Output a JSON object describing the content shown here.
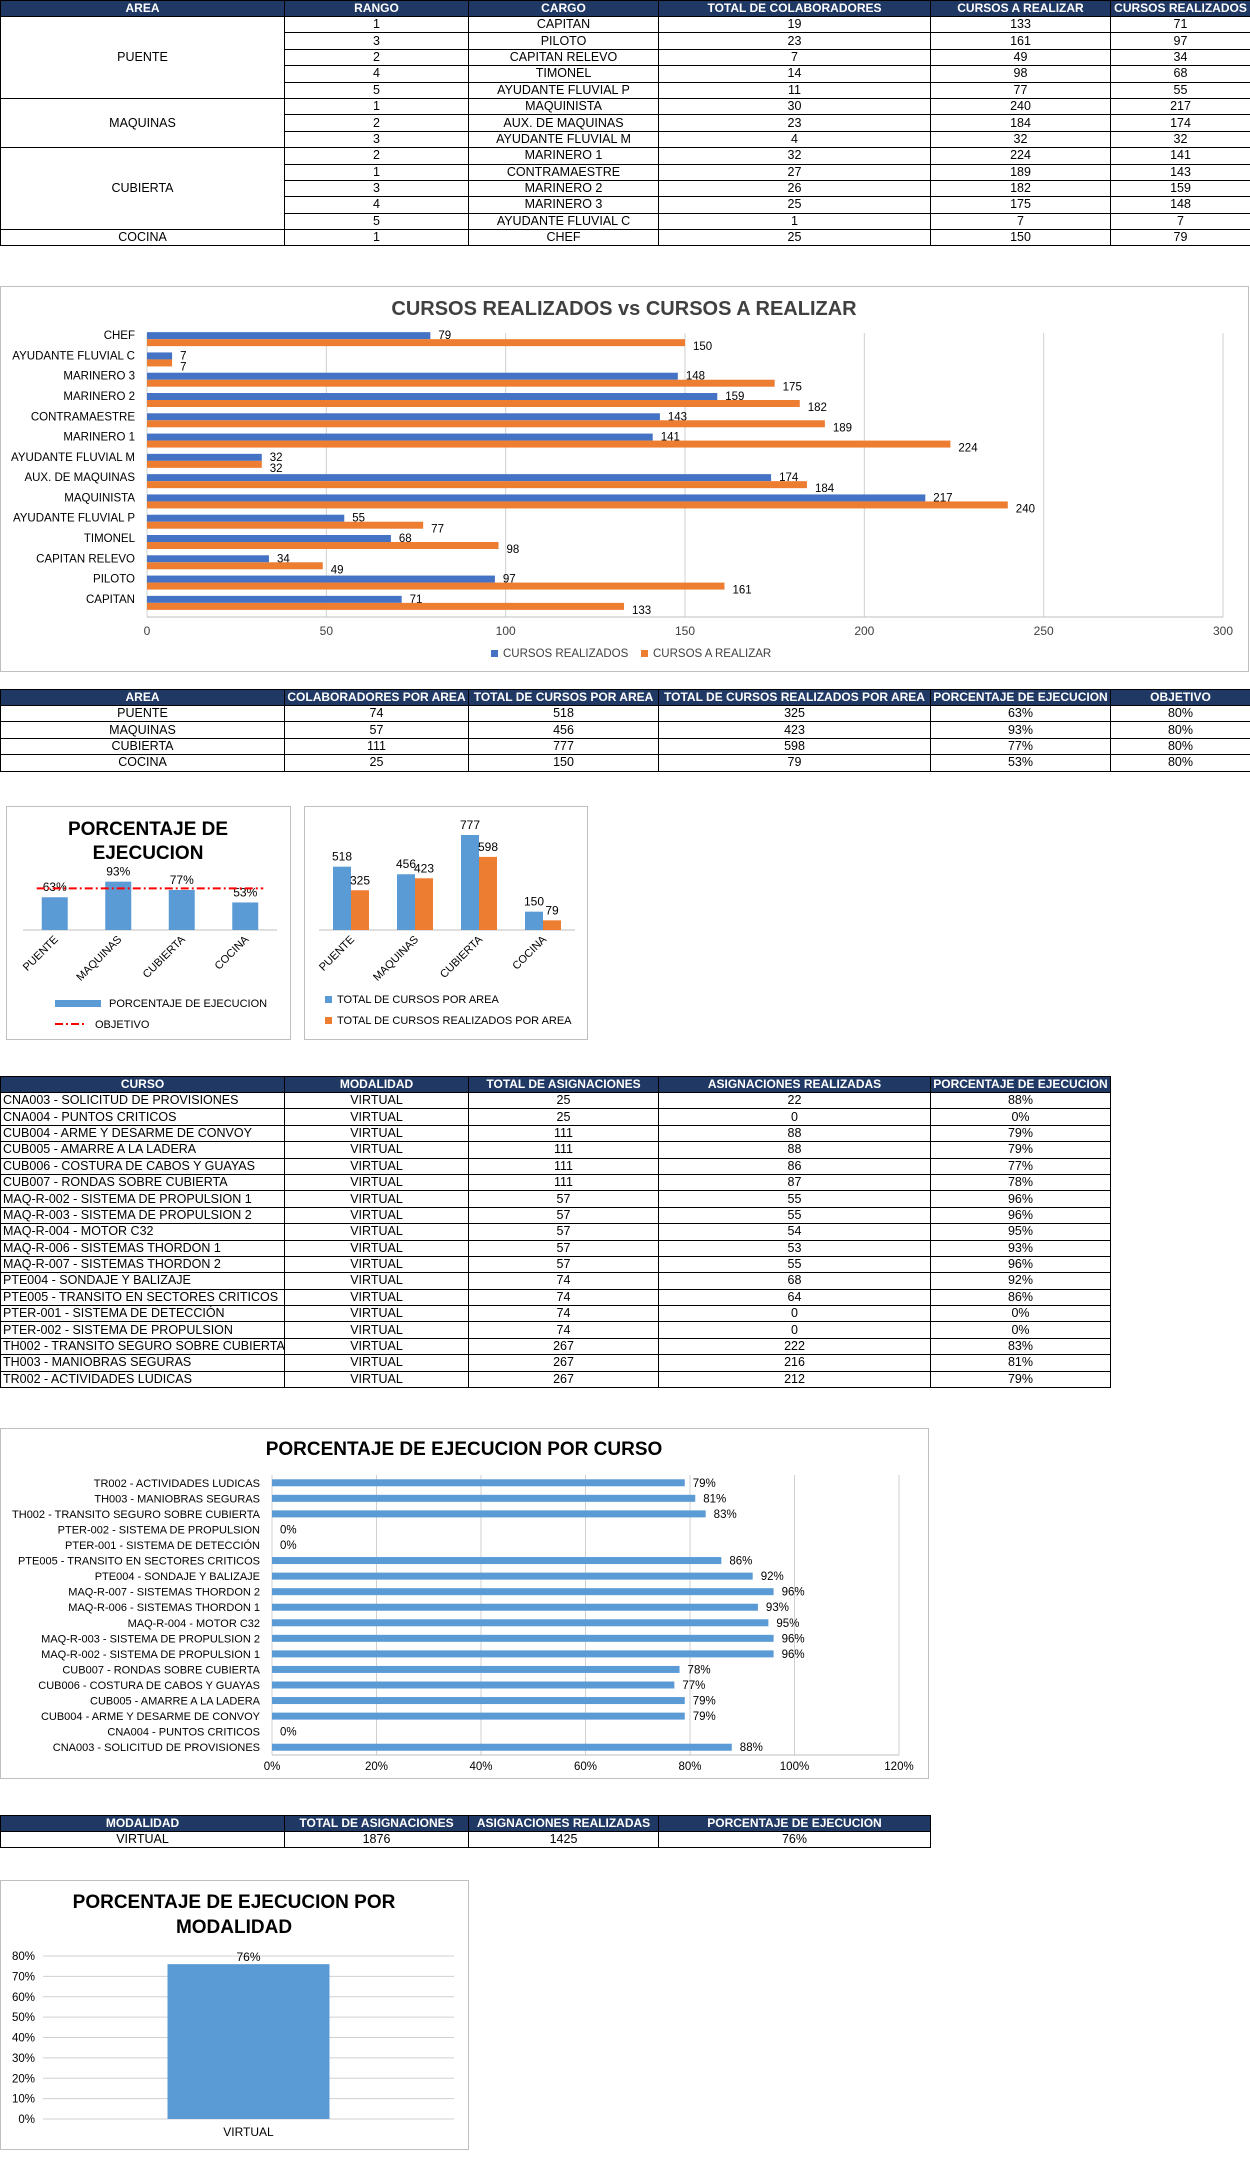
{
  "table1": {
    "headers": [
      "AREA",
      "RANGO",
      "CARGO",
      "TOTAL DE COLABORADORES",
      "CURSOS A REALIZAR",
      "CURSOS REALIZADOS"
    ],
    "groups": [
      {
        "area": "PUENTE",
        "rows": [
          [
            "1",
            "CAPITAN",
            "19",
            "133",
            "71"
          ],
          [
            "3",
            "PILOTO",
            "23",
            "161",
            "97"
          ],
          [
            "2",
            "CAPITAN RELEVO",
            "7",
            "49",
            "34"
          ],
          [
            "4",
            "TIMONEL",
            "14",
            "98",
            "68"
          ],
          [
            "5",
            "AYUDANTE FLUVIAL P",
            "11",
            "77",
            "55"
          ]
        ]
      },
      {
        "area": "MAQUINAS",
        "rows": [
          [
            "1",
            "MAQUINISTA",
            "30",
            "240",
            "217"
          ],
          [
            "2",
            "AUX. DE MAQUINAS",
            "23",
            "184",
            "174"
          ],
          [
            "3",
            "AYUDANTE FLUVIAL M",
            "4",
            "32",
            "32"
          ]
        ]
      },
      {
        "area": "CUBIERTA",
        "rows": [
          [
            "2",
            "MARINERO 1",
            "32",
            "224",
            "141"
          ],
          [
            "1",
            "CONTRAMAESTRE",
            "27",
            "189",
            "143"
          ],
          [
            "3",
            "MARINERO 2",
            "26",
            "182",
            "159"
          ],
          [
            "4",
            "MARINERO 3",
            "25",
            "175",
            "148"
          ],
          [
            "5",
            "AYUDANTE FLUVIAL C",
            "1",
            "7",
            "7"
          ]
        ]
      },
      {
        "area": "COCINA",
        "rows": [
          [
            "1",
            "CHEF",
            "25",
            "150",
            "79"
          ]
        ]
      }
    ]
  },
  "chart1": {
    "title": "CURSOS REALIZADOS vs CURSOS A REALIZAR",
    "type": "bar-horizontal",
    "categories": [
      "CAPITAN",
      "PILOTO",
      "CAPITAN RELEVO",
      "TIMONEL",
      "AYUDANTE FLUVIAL P",
      "MAQUINISTA",
      "AUX. DE MAQUINAS",
      "AYUDANTE FLUVIAL M",
      "MARINERO 1",
      "CONTRAMAESTRE",
      "MARINERO 2",
      "MARINERO 3",
      "AYUDANTE FLUVIAL C",
      "CHEF"
    ],
    "series": [
      {
        "name": "CURSOS REALIZADOS",
        "color": "#4472c4",
        "values": [
          71,
          97,
          34,
          68,
          55,
          217,
          174,
          32,
          141,
          143,
          159,
          148,
          7,
          79
        ]
      },
      {
        "name": "CURSOS A REALIZAR",
        "color": "#ed7d31",
        "values": [
          133,
          161,
          49,
          98,
          77,
          240,
          184,
          32,
          224,
          189,
          182,
          175,
          7,
          150
        ]
      }
    ],
    "xticks": [
      "0",
      "50",
      "100",
      "150",
      "200",
      "250",
      "300"
    ],
    "xlim": [
      0,
      300
    ],
    "legend": "bottom"
  },
  "table2": {
    "headers": [
      "AREA",
      "COLABORADORES POR AREA",
      "TOTAL DE CURSOS POR AREA",
      "TOTAL DE CURSOS REALIZADOS POR AREA",
      "PORCENTAJE DE EJECUCION",
      "OBJETIVO"
    ],
    "rows": [
      [
        "PUENTE",
        "74",
        "518",
        "325",
        "63%",
        "80%"
      ],
      [
        "MAQUINAS",
        "57",
        "456",
        "423",
        "93%",
        "80%"
      ],
      [
        "CUBIERTA",
        "111",
        "777",
        "598",
        "77%",
        "80%"
      ],
      [
        "COCINA",
        "25",
        "150",
        "79",
        "53%",
        "80%"
      ]
    ]
  },
  "chart2": {
    "title_line1": "PORCENTAJE DE",
    "title_line2": "EJECUCION",
    "type": "bar+line",
    "categories": [
      "PUENTE",
      "MAQUINAS",
      "CUBIERTA",
      "COCINA"
    ],
    "values": [
      63,
      93,
      77,
      53
    ],
    "labels": [
      "63%",
      "93%",
      "77%",
      "53%"
    ],
    "objective": 80,
    "legend": [
      "PORCENTAJE DE EJECUCION",
      "OBJETIVO"
    ],
    "bar_color": "#5b9bd5",
    "line_color": "#ff0000"
  },
  "chart3": {
    "type": "bar",
    "categories": [
      "PUENTE",
      "MAQUINAS",
      "CUBIERTA",
      "COCINA"
    ],
    "series": [
      {
        "name": "TOTAL DE CURSOS POR AREA",
        "color": "#5b9bd5",
        "values": [
          518,
          456,
          777,
          150
        ]
      },
      {
        "name": "TOTAL DE CURSOS REALIZADOS POR AREA",
        "color": "#ed7d31",
        "values": [
          325,
          423,
          598,
          79
        ]
      }
    ]
  },
  "table3": {
    "headers": [
      "CURSO",
      "MODALIDAD",
      "TOTAL DE ASIGNACIONES",
      "ASIGNACIONES REALIZADAS",
      "PORCENTAJE DE EJECUCION"
    ],
    "rows": [
      [
        "CNA003 - SOLICITUD DE PROVISIONES",
        "VIRTUAL",
        "25",
        "22",
        "88%"
      ],
      [
        "CNA004 - PUNTOS CRITICOS",
        "VIRTUAL",
        "25",
        "0",
        "0%"
      ],
      [
        "CUB004 - ARME Y DESARME DE CONVOY",
        "VIRTUAL",
        "111",
        "88",
        "79%"
      ],
      [
        "CUB005 - AMARRE A LA LADERA",
        "VIRTUAL",
        "111",
        "88",
        "79%"
      ],
      [
        "CUB006 - COSTURA DE CABOS Y GUAYAS",
        "VIRTUAL",
        "111",
        "86",
        "77%"
      ],
      [
        "CUB007 - RONDAS SOBRE CUBIERTA",
        "VIRTUAL",
        "111",
        "87",
        "78%"
      ],
      [
        "MAQ-R-002 - SISTEMA DE PROPULSION 1",
        "VIRTUAL",
        "57",
        "55",
        "96%"
      ],
      [
        "MAQ-R-003 - SISTEMA DE PROPULSION 2",
        "VIRTUAL",
        "57",
        "55",
        "96%"
      ],
      [
        "MAQ-R-004 - MOTOR C32",
        "VIRTUAL",
        "57",
        "54",
        "95%"
      ],
      [
        "MAQ-R-006 - SISTEMAS THORDON 1",
        "VIRTUAL",
        "57",
        "53",
        "93%"
      ],
      [
        "MAQ-R-007 - SISTEMAS THORDON 2",
        "VIRTUAL",
        "57",
        "55",
        "96%"
      ],
      [
        "PTE004 - SONDAJE Y BALIZAJE",
        "VIRTUAL",
        "74",
        "68",
        "92%"
      ],
      [
        "PTE005 - TRANSITO EN SECTORES CRITICOS",
        "VIRTUAL",
        "74",
        "64",
        "86%"
      ],
      [
        "PTER-001 - SISTEMA DE DETECCIÓN",
        "VIRTUAL",
        "74",
        "0",
        "0%"
      ],
      [
        "PTER-002 - SISTEMA DE PROPULSION",
        "VIRTUAL",
        "74",
        "0",
        "0%"
      ],
      [
        "TH002 - TRANSITO SEGURO SOBRE CUBIERTA",
        "VIRTUAL",
        "267",
        "222",
        "83%"
      ],
      [
        "TH003 - MANIOBRAS SEGURAS",
        "VIRTUAL",
        "267",
        "216",
        "81%"
      ],
      [
        "TR002 - ACTIVIDADES LUDICAS",
        "VIRTUAL",
        "267",
        "212",
        "79%"
      ]
    ]
  },
  "chart4": {
    "title": "PORCENTAJE DE EJECUCION POR CURSO",
    "type": "bar-horizontal",
    "categories": [
      "CNA003 - SOLICITUD DE PROVISIONES",
      "CNA004 - PUNTOS CRITICOS",
      "CUB004 - ARME Y DESARME DE CONVOY",
      "CUB005 - AMARRE A LA LADERA",
      "CUB006 - COSTURA DE CABOS Y GUAYAS",
      "CUB007 - RONDAS SOBRE CUBIERTA",
      "MAQ-R-002 - SISTEMA DE PROPULSION 1",
      "MAQ-R-003 - SISTEMA DE PROPULSION 2",
      "MAQ-R-004 - MOTOR C32",
      "MAQ-R-006 - SISTEMAS THORDON 1",
      "MAQ-R-007 - SISTEMAS THORDON 2",
      "PTE004 - SONDAJE Y BALIZAJE",
      "PTE005 - TRANSITO EN SECTORES CRITICOS",
      "PTER-001 - SISTEMA DE DETECCIÓN",
      "PTER-002 - SISTEMA DE PROPULSION",
      "TH002 - TRANSITO SEGURO SOBRE CUBIERTA",
      "TH003 - MANIOBRAS SEGURAS",
      "TR002 - ACTIVIDADES LUDICAS"
    ],
    "values": [
      88,
      0,
      79,
      79,
      77,
      78,
      96,
      96,
      95,
      93,
      96,
      92,
      86,
      0,
      0,
      83,
      81,
      79
    ],
    "labels": [
      "88%",
      "0%",
      "79%",
      "79%",
      "77%",
      "78%",
      "96%",
      "96%",
      "95%",
      "93%",
      "96%",
      "92%",
      "86%",
      "0%",
      "0%",
      "83%",
      "81%",
      "79%"
    ],
    "xticks": [
      "0%",
      "20%",
      "40%",
      "60%",
      "80%",
      "100%",
      "120%"
    ],
    "xlim": [
      0,
      120
    ],
    "bar_color": "#5b9bd5"
  },
  "table4": {
    "headers": [
      "MODALIDAD",
      "TOTAL DE ASIGNACIONES",
      "ASIGNACIONES REALIZADAS",
      "PORCENTAJE DE EJECUCION"
    ],
    "rows": [
      [
        "VIRTUAL",
        "1876",
        "1425",
        "76%"
      ]
    ]
  },
  "chart5": {
    "title_line1": "PORCENTAJE DE EJECUCION POR",
    "title_line2": "MODALIDAD",
    "type": "bar",
    "categories": [
      "VIRTUAL"
    ],
    "values": [
      76
    ],
    "labels": [
      "76%"
    ],
    "yticks": [
      "0%",
      "10%",
      "20%",
      "30%",
      "40%",
      "50%",
      "60%",
      "70%",
      "80%"
    ],
    "ylim": [
      0,
      80
    ],
    "bar_color": "#5b9bd5"
  }
}
